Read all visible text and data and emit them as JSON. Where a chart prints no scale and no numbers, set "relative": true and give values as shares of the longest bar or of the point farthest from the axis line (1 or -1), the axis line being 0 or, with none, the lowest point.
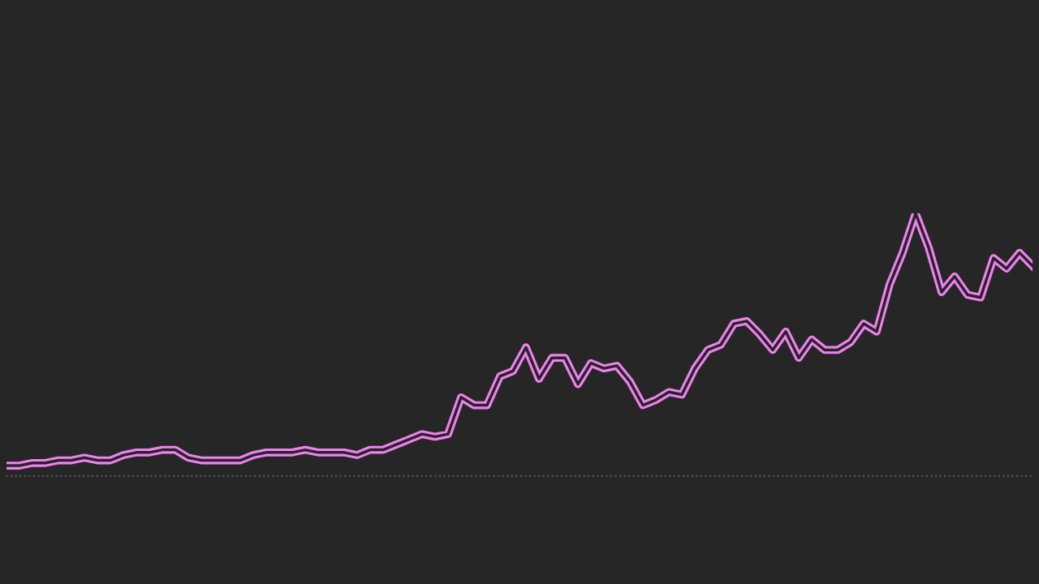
{
  "chart_data": {
    "type": "line",
    "relative": true,
    "categories": [
      null,
      null,
      null,
      null,
      null,
      null,
      null,
      null,
      null,
      null,
      null,
      null,
      null,
      null,
      null,
      null,
      null,
      null,
      null,
      null,
      null,
      null,
      null,
      null,
      null,
      null,
      null,
      null,
      null,
      null,
      null,
      null,
      null,
      null,
      null,
      null,
      null,
      null,
      null,
      null,
      null,
      null,
      null,
      null,
      null,
      null,
      null,
      null,
      null,
      null,
      null,
      null,
      null,
      null,
      null,
      null,
      null,
      null,
      null,
      null,
      null,
      null,
      null,
      null,
      null,
      null,
      null,
      null,
      null,
      null,
      null,
      null,
      null,
      null,
      null,
      null,
      null,
      null,
      null,
      null
    ],
    "series": [
      {
        "color": "#f080f0",
        "values": [
          0.04,
          0.04,
          0.05,
          0.05,
          0.06,
          0.06,
          0.07,
          0.06,
          0.06,
          0.08,
          0.09,
          0.09,
          0.1,
          0.1,
          0.07,
          0.06,
          0.06,
          0.06,
          0.06,
          0.08,
          0.09,
          0.09,
          0.09,
          0.1,
          0.09,
          0.09,
          0.09,
          0.08,
          0.1,
          0.1,
          0.12,
          0.14,
          0.16,
          0.15,
          0.16,
          0.3,
          0.27,
          0.27,
          0.38,
          0.4,
          0.49,
          0.37,
          0.45,
          0.45,
          0.35,
          0.43,
          0.41,
          0.42,
          0.36,
          0.27,
          0.29,
          0.32,
          0.31,
          0.41,
          0.48,
          0.5,
          0.58,
          0.59,
          0.54,
          0.48,
          0.55,
          0.45,
          0.52,
          0.48,
          0.48,
          0.51,
          0.58,
          0.55,
          0.73,
          0.85,
          1.0,
          0.87,
          0.7,
          0.76,
          0.69,
          0.68,
          0.83,
          0.79,
          0.85,
          0.8
        ]
      }
    ]
  }
}
